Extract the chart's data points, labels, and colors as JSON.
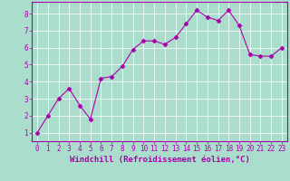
{
  "x": [
    0,
    1,
    2,
    3,
    4,
    5,
    6,
    7,
    8,
    9,
    10,
    11,
    12,
    13,
    14,
    15,
    16,
    17,
    18,
    19,
    20,
    21,
    22,
    23
  ],
  "y": [
    1.0,
    2.0,
    3.0,
    3.6,
    2.6,
    1.8,
    4.2,
    4.3,
    4.9,
    5.9,
    6.4,
    6.4,
    6.2,
    6.6,
    7.4,
    8.2,
    7.8,
    7.6,
    8.2,
    7.3,
    5.6,
    5.5,
    5.5,
    6.0
  ],
  "line_color": "#aa00aa",
  "marker": "D",
  "markersize": 2.5,
  "linewidth": 0.8,
  "bg_color": "#aaddcc",
  "grid_color": "#ffffff",
  "border_color": "#aa00aa",
  "xlabel": "Windchill (Refroidissement éolien,°C)",
  "xlabel_color": "#aa00aa",
  "tick_color": "#aa00aa",
  "ylim": [
    0.5,
    8.7
  ],
  "xlim": [
    -0.5,
    23.5
  ],
  "yticks": [
    1,
    2,
    3,
    4,
    5,
    6,
    7,
    8
  ],
  "xticks": [
    0,
    1,
    2,
    3,
    4,
    5,
    6,
    7,
    8,
    9,
    10,
    11,
    12,
    13,
    14,
    15,
    16,
    17,
    18,
    19,
    20,
    21,
    22,
    23
  ],
  "tick_fontsize": 5.5,
  "xlabel_fontsize": 6.5
}
